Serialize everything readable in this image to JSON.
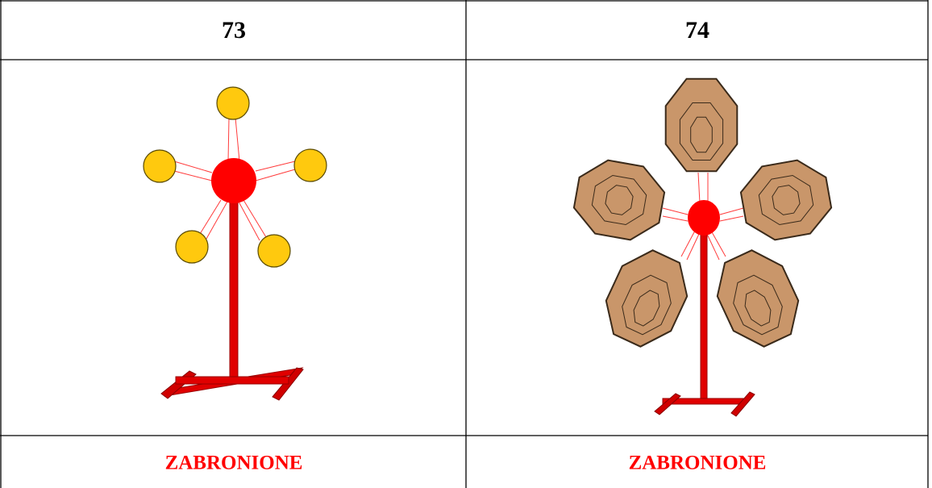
{
  "table": {
    "headers": [
      "73",
      "74"
    ],
    "labels": [
      "ZABRONIONE",
      "ZABRONIONE"
    ]
  }
}
